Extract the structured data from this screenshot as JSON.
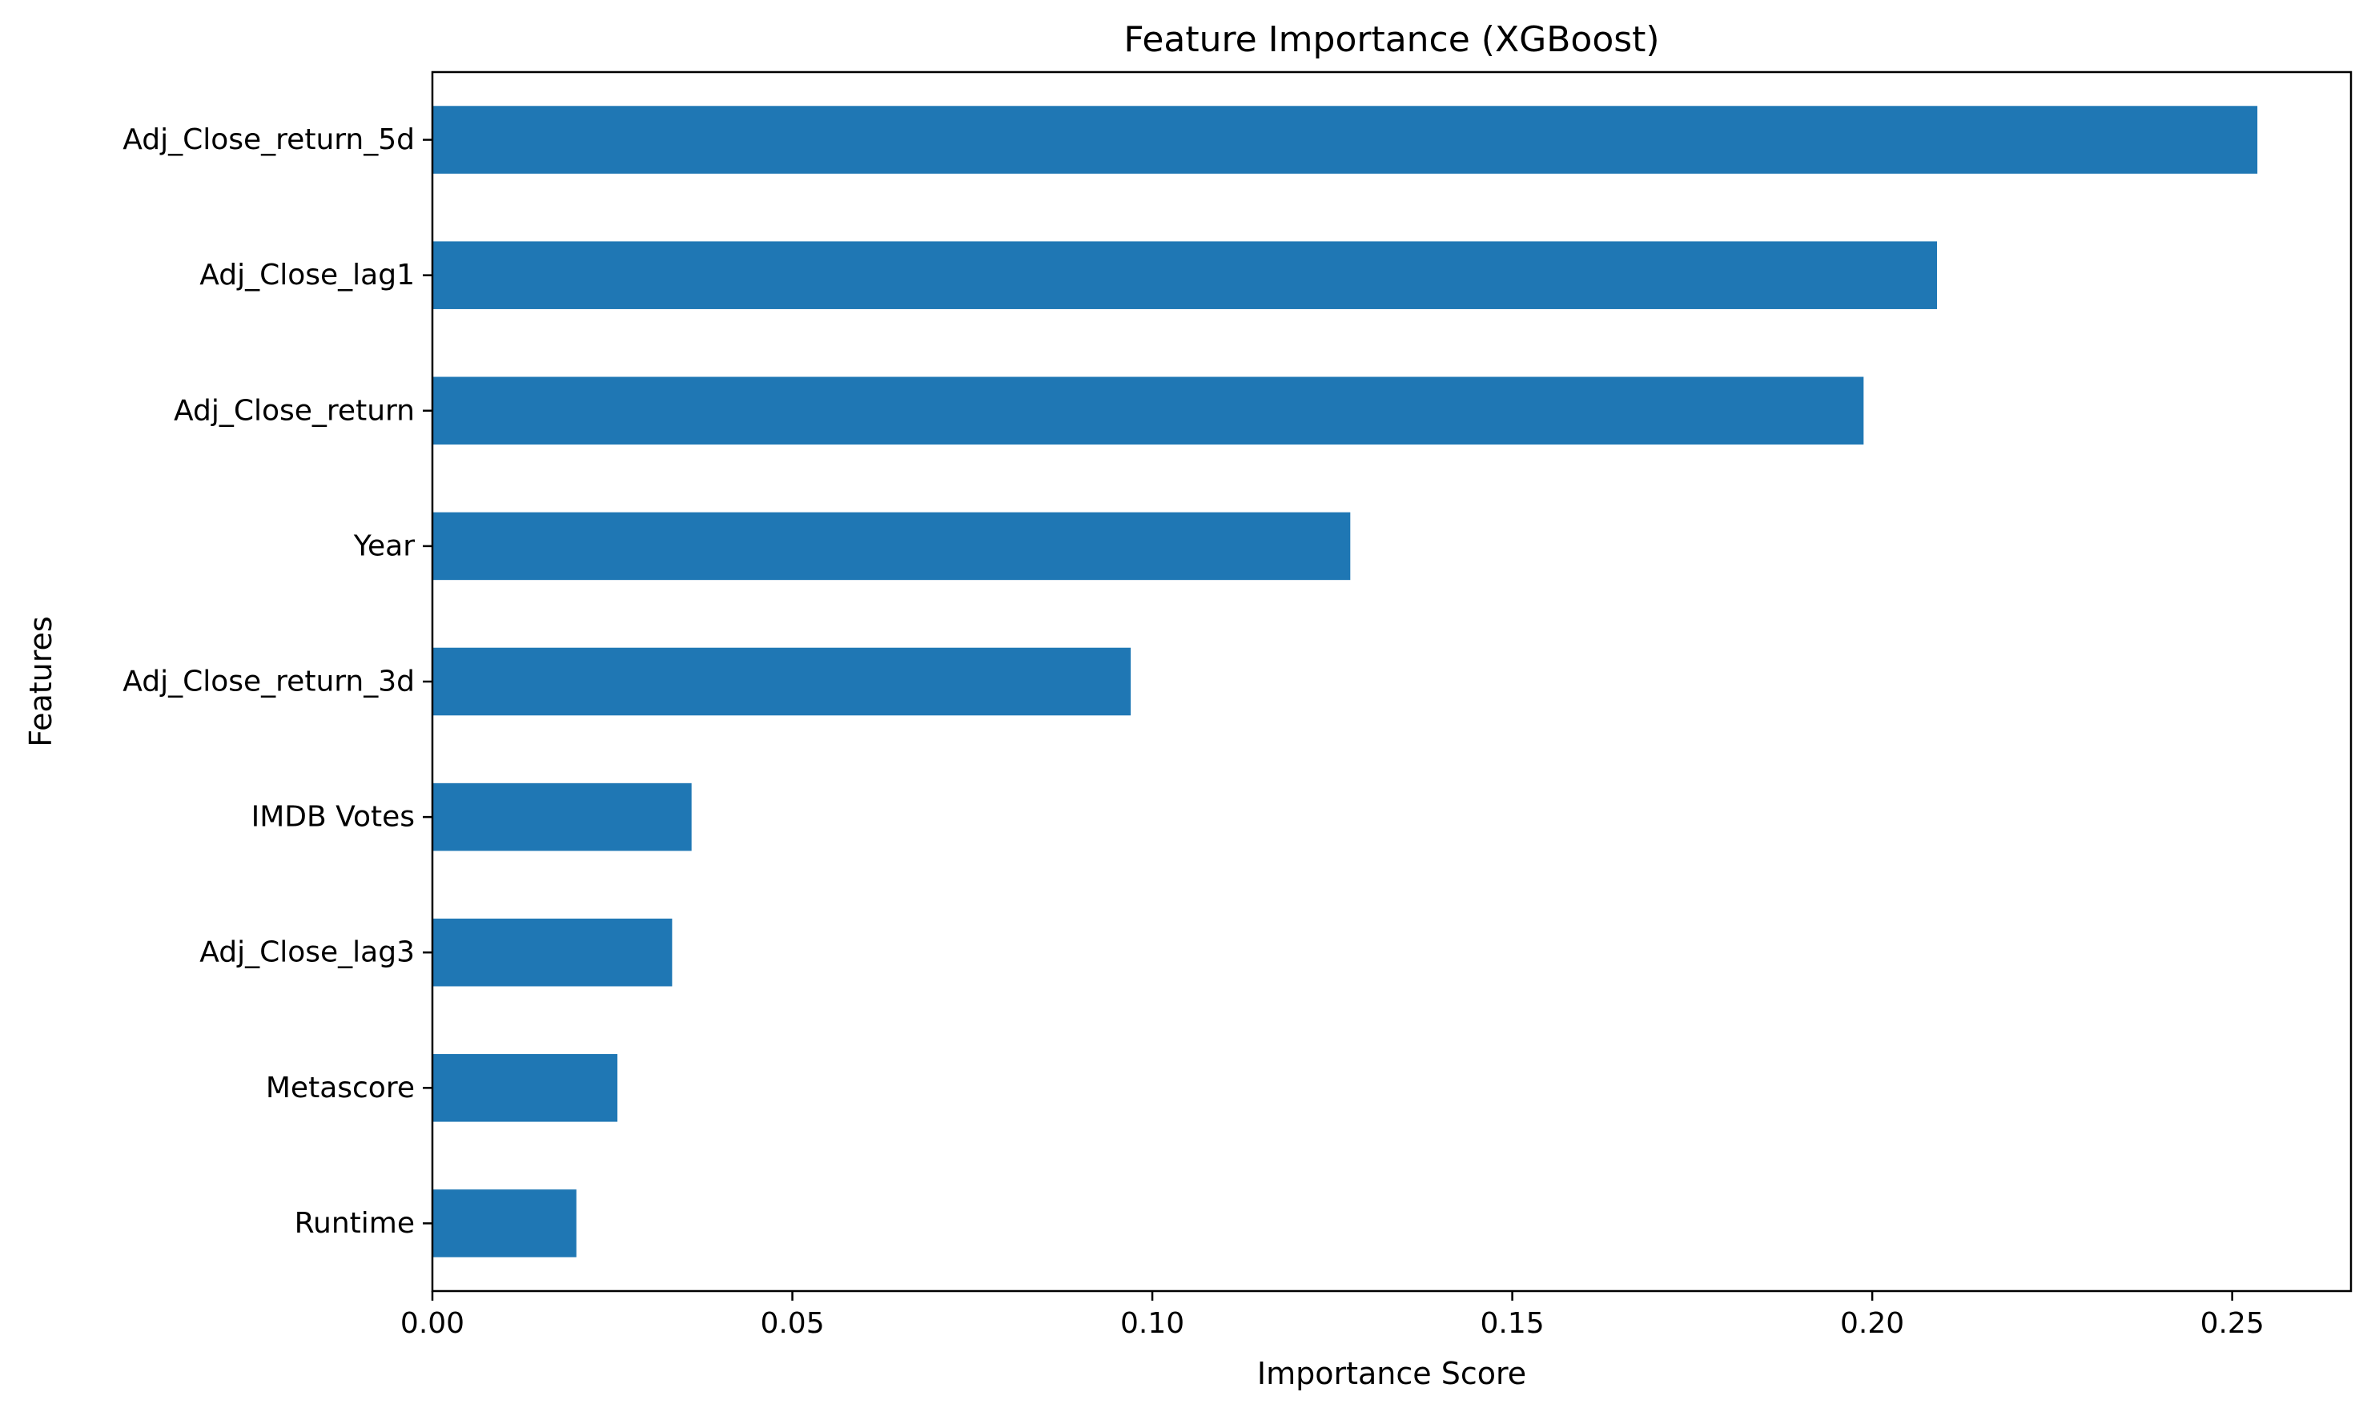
{
  "chart_data": {
    "type": "bar",
    "orientation": "horizontal",
    "title": "Feature Importance (XGBoost)",
    "xlabel": "Importance Score",
    "ylabel": "Features",
    "categories": [
      "Adj_Close_return_5d",
      "Adj_Close_lag1",
      "Adj_Close_return",
      "Year",
      "Adj_Close_return_3d",
      "IMDB Votes",
      "Adj_Close_lag3",
      "Metascore",
      "Runtime"
    ],
    "values": [
      0.2535,
      0.209,
      0.1988,
      0.1275,
      0.097,
      0.036,
      0.0333,
      0.0257,
      0.02
    ],
    "xlim": [
      0,
      0.2665
    ],
    "xticks": [
      0.0,
      0.05,
      0.1,
      0.15,
      0.2,
      0.25
    ],
    "xtick_labels": [
      "0.00",
      "0.05",
      "0.10",
      "0.15",
      "0.20",
      "0.25"
    ],
    "bar_color": "#1f77b4",
    "grid": false,
    "legend": "none"
  }
}
